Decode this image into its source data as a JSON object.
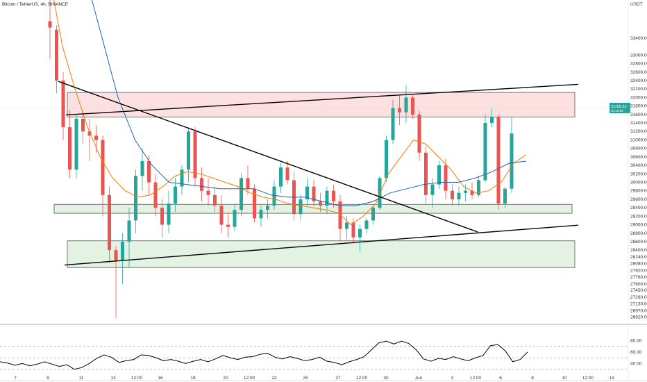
{
  "header": {
    "symbol_title": "Bitcoin / TetherUS, 4h, BINANCE",
    "currency": "USDT"
  },
  "price_tag": {
    "value": "31158.33",
    "sub": "03:19:59"
  },
  "colors": {
    "up": "#26a69a",
    "down": "#ef5350",
    "ma_fast": "#f57c00",
    "ma_slow": "#1565c0",
    "resistance_zone": "#fde0e0",
    "support_zone": "#e3f2e3",
    "trendline": "#000000",
    "rsi": "#000000"
  },
  "chart_data": [
    {
      "type": "candlestick",
      "title": "Bitcoin / TetherUS, 4h, BINANCE",
      "y_unit": "USDT",
      "ylim": [
        26650,
        34300
      ],
      "y_ticks": [
        33400,
        33000,
        32800,
        32600,
        32400,
        32200,
        32000,
        31800,
        31600,
        31400,
        31200,
        31000,
        30800,
        30600,
        30400,
        30200,
        30000,
        29800,
        29600,
        29400,
        29200,
        29000,
        28800,
        28600,
        28400,
        28240,
        28080,
        27920,
        27760,
        27600,
        27450,
        27290,
        27130,
        26970,
        26820
      ],
      "x_ticks": [
        "7",
        "9",
        "11",
        "13",
        "12:00",
        "16",
        "18",
        "20",
        "12:00",
        "23",
        "25",
        "27",
        "12:00",
        "30",
        "Jun",
        "3",
        "12:00",
        "6",
        "8",
        "10",
        "12:00",
        "13"
      ],
      "zones": [
        {
          "name": "resistance",
          "y_range": [
            31540,
            32120
          ]
        },
        {
          "name": "upper-support",
          "y_range": [
            29270,
            29480
          ]
        },
        {
          "name": "lower-support",
          "y_range": [
            27990,
            28620
          ]
        }
      ],
      "moving_averages": [
        {
          "name": "fast",
          "color": "#f57c00",
          "values": [
            34800,
            33200,
            32200,
            31300,
            30600,
            30100,
            29800,
            29650,
            29700,
            29900,
            30150,
            30250,
            30200,
            30100,
            30000,
            29900,
            29750,
            29650,
            29600,
            29500,
            29450,
            29400,
            29350,
            29280,
            29000,
            29200,
            29500,
            30200,
            30600,
            31000,
            30900,
            30600,
            30300,
            29900,
            29750,
            29800,
            30000,
            30450,
            30650
          ]
        },
        {
          "name": "slow",
          "color": "#1565c0",
          "values": [
            38000,
            36500,
            35000,
            33500,
            32000,
            31000,
            30400,
            30000,
            29950,
            29900,
            29850,
            29850,
            29850,
            29700,
            29650,
            29650,
            29550,
            29450,
            29450,
            29550,
            29750,
            29850,
            29950,
            30000,
            30000,
            30100,
            30250,
            30450,
            30500
          ]
        }
      ],
      "trendlines": [
        {
          "name": "descending",
          "from": {
            "x_index": 0,
            "price": 32380
          },
          "to": {
            "x_index": 1,
            "price": 28830
          }
        },
        {
          "name": "ascending-lower",
          "from": {
            "x_index": 0,
            "price": 28050
          },
          "to": {
            "x_index": 1,
            "price": 28990
          }
        },
        {
          "name": "ascending-upper",
          "from": {
            "x_index": 0,
            "price": 31590
          },
          "to": {
            "x_index": 1,
            "price": 32310
          }
        }
      ],
      "candles": [
        [
          33800,
          34300,
          32900,
          33650
        ],
        [
          33600,
          33700,
          32100,
          32400
        ],
        [
          32400,
          32600,
          31000,
          31300
        ],
        [
          31300,
          31700,
          30100,
          30300
        ],
        [
          30300,
          31600,
          30100,
          31500
        ],
        [
          31500,
          31700,
          30900,
          31200
        ],
        [
          31200,
          31500,
          30500,
          31100
        ],
        [
          31100,
          31350,
          30700,
          31000
        ],
        [
          31000,
          31100,
          29200,
          29700
        ],
        [
          29700,
          29900,
          28100,
          28400
        ],
        [
          28400,
          28500,
          26800,
          28150
        ],
        [
          28150,
          28800,
          27600,
          28600
        ],
        [
          28600,
          29400,
          28000,
          29100
        ],
        [
          29100,
          30300,
          28800,
          30150
        ],
        [
          30150,
          30800,
          29800,
          30500
        ],
        [
          30500,
          30650,
          29700,
          30000
        ],
        [
          30000,
          30200,
          29200,
          29400
        ],
        [
          29400,
          29600,
          28700,
          29000
        ],
        [
          29000,
          29800,
          28800,
          29500
        ],
        [
          29500,
          30100,
          29300,
          29900
        ],
        [
          29900,
          30400,
          29700,
          30300
        ],
        [
          30300,
          31300,
          30000,
          31200
        ],
        [
          31200,
          31300,
          29900,
          30100
        ],
        [
          30100,
          30350,
          29550,
          29800
        ],
        [
          29800,
          30100,
          29450,
          29700
        ],
        [
          29700,
          29900,
          29300,
          29450
        ],
        [
          29450,
          29700,
          28800,
          29000
        ],
        [
          29000,
          29300,
          28700,
          28950
        ],
        [
          28950,
          29500,
          28850,
          29350
        ],
        [
          29350,
          30200,
          29200,
          30100
        ],
        [
          30100,
          30400,
          29700,
          29850
        ],
        [
          29850,
          29950,
          29050,
          29150
        ],
        [
          29150,
          29450,
          28950,
          29350
        ],
        [
          29350,
          29600,
          29150,
          29450
        ],
        [
          29450,
          30050,
          29350,
          29900
        ],
        [
          29900,
          30450,
          29750,
          30350
        ],
        [
          30350,
          30500,
          29950,
          30050
        ],
        [
          30050,
          30250,
          29100,
          29250
        ],
        [
          29250,
          29700,
          29100,
          29600
        ],
        [
          29600,
          30100,
          29450,
          29900
        ],
        [
          29900,
          30050,
          29450,
          29550
        ],
        [
          29550,
          29750,
          29300,
          29450
        ],
        [
          29450,
          29900,
          29250,
          29800
        ],
        [
          29800,
          29950,
          29400,
          29550
        ],
        [
          29550,
          29700,
          28600,
          28900
        ],
        [
          28900,
          29200,
          28650,
          29050
        ],
        [
          29050,
          29150,
          28550,
          28700
        ],
        [
          28700,
          29000,
          28350,
          28900
        ],
        [
          28900,
          29150,
          28800,
          29100
        ],
        [
          29100,
          29450,
          29000,
          29400
        ],
        [
          29400,
          30150,
          29350,
          30100
        ],
        [
          30100,
          31100,
          30000,
          31000
        ],
        [
          31000,
          31950,
          30900,
          31750
        ],
        [
          31750,
          32050,
          31350,
          31650
        ],
        [
          31650,
          32300,
          31400,
          32000
        ],
        [
          32000,
          32050,
          31500,
          31600
        ],
        [
          31600,
          31700,
          30500,
          30700
        ],
        [
          30700,
          30850,
          29500,
          29700
        ],
        [
          29700,
          30100,
          29400,
          29950
        ],
        [
          29950,
          30500,
          29850,
          30400
        ],
        [
          30400,
          30550,
          29600,
          29800
        ],
        [
          29800,
          29950,
          29450,
          29600
        ],
        [
          29600,
          29900,
          29450,
          29750
        ],
        [
          29750,
          29950,
          29550,
          29800
        ],
        [
          29800,
          30000,
          29600,
          29700
        ],
        [
          29700,
          30150,
          29650,
          30050
        ],
        [
          30050,
          31600,
          30000,
          31400
        ],
        [
          31400,
          31750,
          31300,
          31550
        ],
        [
          31550,
          31600,
          29350,
          29500
        ],
        [
          29500,
          29900,
          29400,
          29850
        ],
        [
          29850,
          31550,
          29750,
          31150
        ]
      ]
    },
    {
      "type": "line",
      "title": "RSI",
      "ylim": [
        20,
        90
      ],
      "y_ticks": [
        80,
        60,
        40
      ],
      "guide_levels": [
        70,
        50,
        30
      ],
      "values": [
        43,
        41,
        37,
        40,
        36,
        39,
        43,
        39,
        35,
        38,
        30,
        33,
        40,
        49,
        55,
        51,
        42,
        45,
        47,
        55,
        54,
        50,
        45,
        47,
        44,
        40,
        44,
        47,
        43,
        48,
        54,
        50,
        47,
        51,
        52,
        56,
        58,
        51,
        48,
        52,
        49,
        45,
        47,
        51,
        44,
        42,
        38,
        43,
        47,
        52,
        64,
        76,
        79,
        74,
        79,
        75,
        64,
        48,
        44,
        49,
        47,
        52,
        48,
        45,
        50,
        54,
        71,
        73,
        62,
        43,
        47,
        60
      ]
    }
  ]
}
